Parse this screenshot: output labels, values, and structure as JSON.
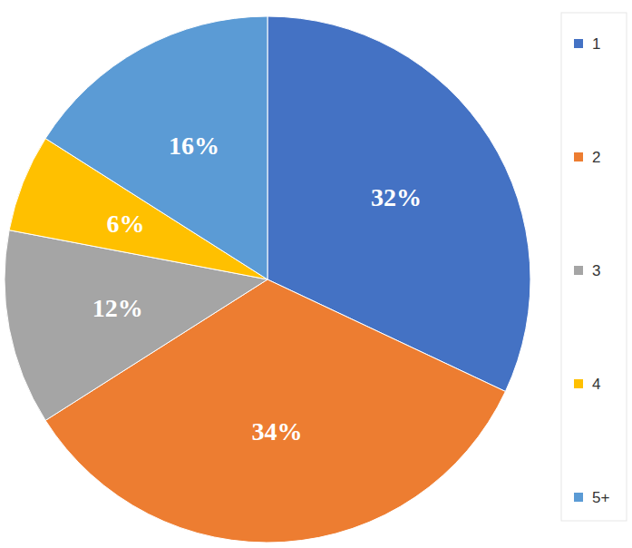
{
  "chart_data": {
    "type": "pie",
    "categories": [
      "1",
      "2",
      "3",
      "4",
      "5+"
    ],
    "values": [
      32,
      34,
      12,
      6,
      16
    ],
    "value_labels": [
      "32%",
      "34%",
      "12%",
      "6%",
      "16%"
    ],
    "colors": [
      "#4472c4",
      "#ed7d31",
      "#a5a5a5",
      "#ffc000",
      "#5b9bd5"
    ],
    "data_labels": true,
    "legend": "right"
  }
}
